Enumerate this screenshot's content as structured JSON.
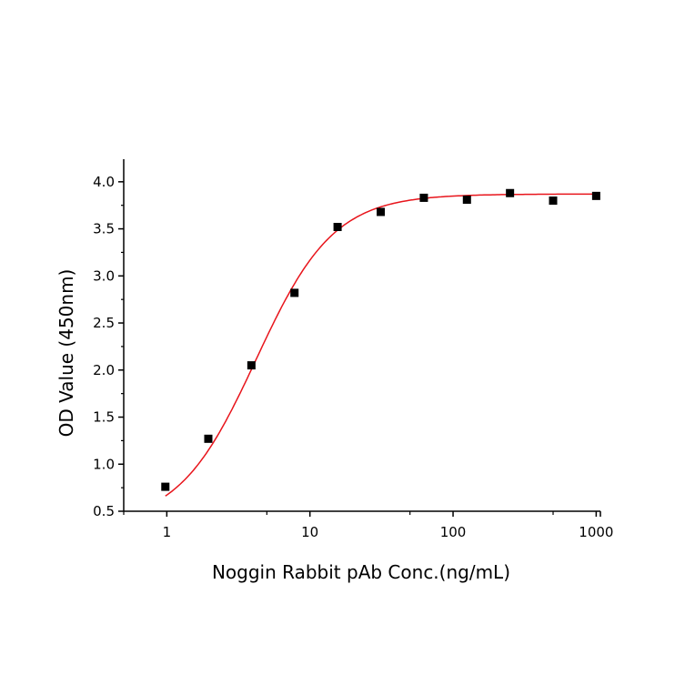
{
  "chart_data": {
    "type": "scatter",
    "title": "",
    "xlabel": "Noggin Rabbit pAb Conc.(ng/mL)",
    "ylabel": "OD Value (450nm)",
    "xscale": "log",
    "xlim": [
      0.5,
      1070
    ],
    "ylim": [
      0.5,
      4.24
    ],
    "xticks": [
      1,
      10,
      100,
      1000
    ],
    "xtick_labels": [
      "1",
      "10",
      "100",
      "1000"
    ],
    "xminor_ticks": [
      0.5,
      5,
      50,
      500
    ],
    "yticks": [
      0.5,
      1.0,
      1.5,
      2.0,
      2.5,
      3.0,
      3.5,
      4.0
    ],
    "ytick_labels": [
      "0.5",
      "1.0",
      "1.5",
      "2.0",
      "2.5",
      "3.0",
      "3.5",
      "4.0"
    ],
    "yminor_ticks": [
      0.75,
      1.25,
      1.75,
      2.25,
      2.75,
      3.25,
      3.75
    ],
    "grid": false,
    "legend": "none",
    "series": [
      {
        "name": "data",
        "kind": "points",
        "color": "#000000",
        "x": [
          0.977,
          1.95,
          3.9,
          7.8,
          15.6,
          31.25,
          62.5,
          125,
          250,
          500,
          1000
        ],
        "y": [
          0.76,
          1.27,
          2.05,
          2.82,
          3.52,
          3.68,
          3.83,
          3.81,
          3.88,
          3.8,
          3.85
        ]
      },
      {
        "name": "4PL fit",
        "kind": "curve",
        "color": "#e8141b",
        "params": {
          "bottom": 0.35,
          "top": 3.87,
          "ec50": 4.2,
          "hill": 1.6
        },
        "x_range": [
          0.977,
          1000
        ]
      }
    ]
  }
}
